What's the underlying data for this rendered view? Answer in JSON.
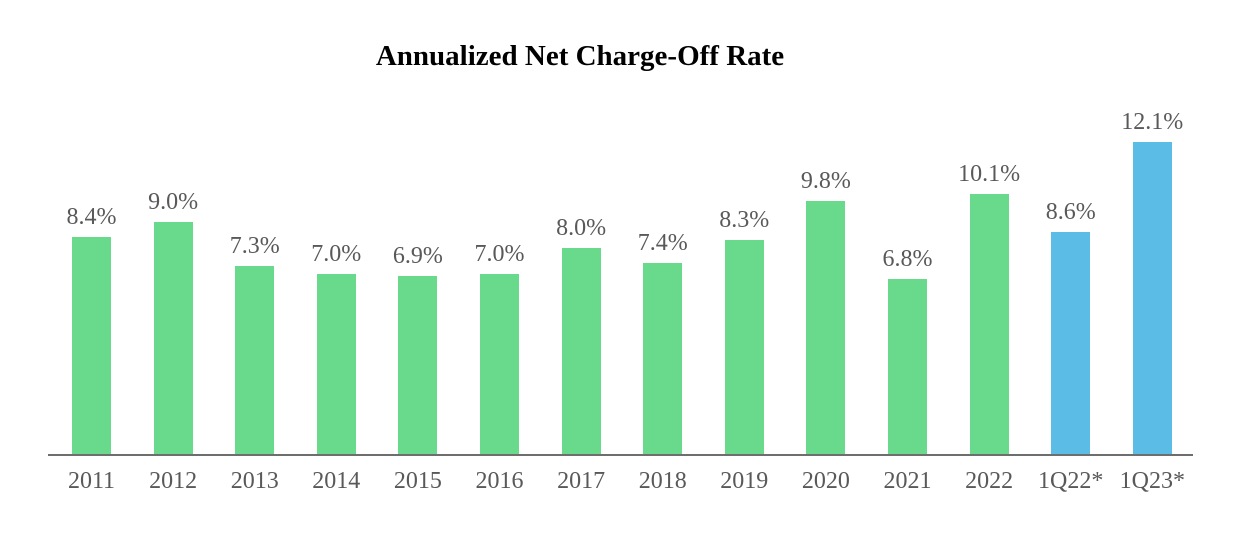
{
  "title": "Annualized Net Charge-Off Rate",
  "colors": {
    "bar_green": "#69D98C",
    "bar_blue": "#5BBDE6",
    "label_gray": "#595959",
    "axis_gray": "#6E6E6E",
    "title_black": "#000000",
    "background": "#FFFFFF"
  },
  "chart_data": {
    "type": "bar",
    "title": "Annualized Net Charge-Off Rate",
    "categories": [
      "2011",
      "2012",
      "2013",
      "2014",
      "2015",
      "2016",
      "2017",
      "2018",
      "2019",
      "2020",
      "2021",
      "2022",
      "1Q22*",
      "1Q23*"
    ],
    "values": [
      8.4,
      9.0,
      7.3,
      7.0,
      6.9,
      7.0,
      8.0,
      7.4,
      8.3,
      9.8,
      6.8,
      10.1,
      8.6,
      12.1
    ],
    "value_labels": [
      "8.4%",
      "9.0%",
      "7.3%",
      "7.0%",
      "6.9%",
      "7.0%",
      "8.0%",
      "7.4%",
      "8.3%",
      "9.8%",
      "6.8%",
      "10.1%",
      "8.6%",
      "12.1%"
    ],
    "bar_colors": [
      "#69D98C",
      "#69D98C",
      "#69D98C",
      "#69D98C",
      "#69D98C",
      "#69D98C",
      "#69D98C",
      "#69D98C",
      "#69D98C",
      "#69D98C",
      "#69D98C",
      "#69D98C",
      "#5BBDE6",
      "#5BBDE6"
    ],
    "xlabel": "",
    "ylabel": "",
    "ylim": [
      0,
      12.5
    ],
    "grid": false,
    "legend": "none",
    "value_label_position": "above",
    "y_axis_visible": false,
    "x_axis_visible": true
  }
}
